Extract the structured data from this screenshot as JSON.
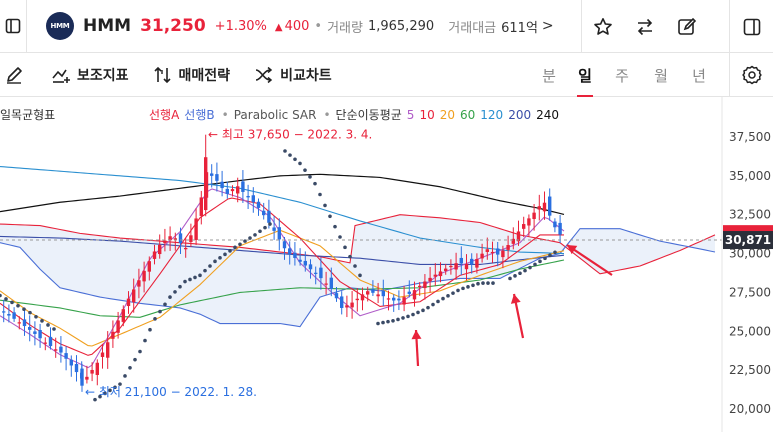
{
  "header": {
    "logo_text": "HMM",
    "ticker": "HMM",
    "price": "31,250",
    "change_pct": "+1.30%",
    "change_abs": "400",
    "volume_label": "거래량",
    "volume_value": "1,965,290",
    "trade_value_label": "거래대금",
    "trade_value_value": "611억",
    "more": ">",
    "icons": [
      "sidebar-toggle-icon",
      "star-icon",
      "swap-arrows-icon",
      "edit-icon",
      "panel-toggle-icon"
    ]
  },
  "toolbar": {
    "indicators_label": "보조지표",
    "strategy_label": "매매전략",
    "compare_label": "비교차트",
    "timeframes": [
      "분",
      "일",
      "주",
      "월",
      "년"
    ],
    "active_timeframe": "일",
    "icons": [
      "pencil-icon",
      "indicator-icon",
      "strategy-icon",
      "compare-icon",
      "settings-icon"
    ]
  },
  "legend": {
    "ichimoku": "일목균형표",
    "span_a": "선행A",
    "span_b": "선행B",
    "dot": "•",
    "psar": "Parabolic SAR",
    "ma_label": "단순이동평균",
    "ma_periods": [
      {
        "label": "5",
        "color": "#b05cc8"
      },
      {
        "label": "10",
        "color": "#e8223a"
      },
      {
        "label": "20",
        "color": "#f0a020"
      },
      {
        "label": "60",
        "color": "#36a24a"
      },
      {
        "label": "120",
        "color": "#2a8fd0"
      },
      {
        "label": "200",
        "color": "#3a4ea8"
      },
      {
        "label": "240",
        "color": "#111111"
      }
    ]
  },
  "chart_data": {
    "type": "candlestick",
    "y_axis": {
      "ticks": [
        "37,500",
        "35,000",
        "32,500",
        "30,000",
        "27,500",
        "25,000",
        "22,500",
        "20,000"
      ],
      "tick_values": [
        37500,
        35000,
        32500,
        30000,
        27500,
        25000,
        22500,
        20000
      ],
      "range": [
        19400,
        38800
      ]
    },
    "current_price": "30,871",
    "current_price_value": 30871,
    "high_marker": {
      "label": "최고 37,650 − 2022. 3. 4.",
      "value": 37650
    },
    "low_marker": {
      "label": "최저 21,100 − 2022. 1. 28.",
      "value": 21100
    },
    "colors": {
      "up": "#e8223a",
      "down": "#2a6fe0",
      "span_a": "#e8223a",
      "span_b": "#4a6fd6",
      "psar": "#3a4a66"
    }
  }
}
